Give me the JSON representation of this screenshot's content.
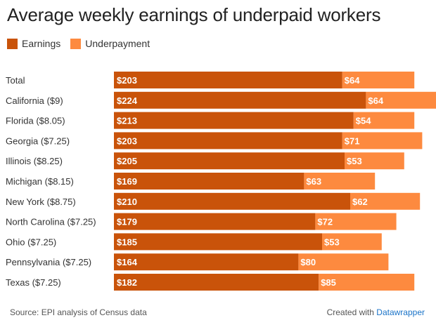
{
  "title": "Average weekly earnings of underpaid workers",
  "legend": {
    "earnings": "Earnings",
    "underpayment": "Underpayment"
  },
  "colors": {
    "earnings": "#c9530a",
    "underpayment": "#fd8a3f",
    "label": "#ffffff"
  },
  "footer": {
    "source": "Source: EPI analysis of Census data",
    "created_prefix": "Created with",
    "created_link": "Datawrapper"
  },
  "chart_data": {
    "type": "bar",
    "orientation": "horizontal",
    "stacked": true,
    "title": "Average weekly earnings of underpaid workers",
    "categories": [
      "Total",
      "California ($9)",
      "Florida ($8.05)",
      "Georgia ($7.25)",
      "Illinois ($8.25)",
      "Michigan ($8.15)",
      "New York ($8.75)",
      "North Carolina ($7.25)",
      "Ohio ($7.25)",
      "Pennsylvania ($7.25)",
      "Texas ($7.25)"
    ],
    "series": [
      {
        "name": "Earnings",
        "values": [
          203,
          224,
          213,
          203,
          205,
          169,
          210,
          179,
          185,
          164,
          182
        ],
        "labels": [
          "$203",
          "$224",
          "$213",
          "$203",
          "$205",
          "$169",
          "$210",
          "$179",
          "$185",
          "$164",
          "$182"
        ]
      },
      {
        "name": "Underpayment",
        "values": [
          64,
          64,
          54,
          71,
          53,
          63,
          62,
          72,
          53,
          80,
          85
        ],
        "labels": [
          "$64",
          "$64",
          "$54",
          "$71",
          "$53",
          "$63",
          "$62",
          "$72",
          "$53",
          "$80",
          "$85"
        ]
      }
    ],
    "legend_position": "top-left",
    "grid": false
  }
}
